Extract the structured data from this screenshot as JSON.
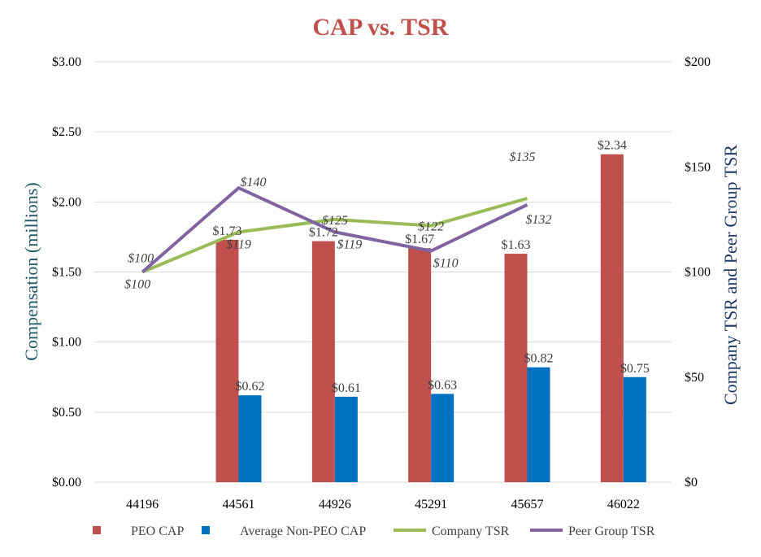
{
  "chart_data": {
    "type": "bar",
    "title": "CAP vs. TSR",
    "title_color": "#c0504d",
    "categories": [
      "44196",
      "44561",
      "44926",
      "45291",
      "45657",
      "46022"
    ],
    "ylabel": "Compensation (millions)",
    "ylabel_color": "#215968",
    "y2label": "Company TSR and Peer Group TSR",
    "y2label_color": "#1f3864",
    "ylim": [
      0,
      3
    ],
    "yticks": [
      {
        "value": 0,
        "label": "$0.00"
      },
      {
        "value": 0.5,
        "label": "$0.50"
      },
      {
        "value": 1,
        "label": "$1.00"
      },
      {
        "value": 1.5,
        "label": "$1.50"
      },
      {
        "value": 2,
        "label": "$2.00"
      },
      {
        "value": 2.5,
        "label": "$2.50"
      },
      {
        "value": 3,
        "label": "$3.00"
      }
    ],
    "y2lim": [
      0,
      200
    ],
    "y2ticks": [
      {
        "value": 0,
        "label": "$0"
      },
      {
        "value": 50,
        "label": "$50"
      },
      {
        "value": 100,
        "label": "$100"
      },
      {
        "value": 150,
        "label": "$150"
      },
      {
        "value": 200,
        "label": "$200"
      }
    ],
    "grid": true,
    "bar_series": [
      {
        "name": "PEO CAP",
        "color": "#c0504d",
        "values": [
          null,
          1.73,
          1.72,
          1.67,
          1.63,
          2.34
        ],
        "labels": [
          null,
          "$1.73",
          "$1.72",
          "$1.67",
          "$1.63",
          "$2.34"
        ]
      },
      {
        "name": "Average Non-PEO CAP",
        "color": "#0070c0",
        "values": [
          null,
          0.62,
          0.61,
          0.63,
          0.82,
          0.75
        ],
        "labels": [
          null,
          "$0.62",
          "$0.61",
          "$0.63",
          "$0.82",
          "$0.75"
        ]
      }
    ],
    "line_series": [
      {
        "name": "Company TSR",
        "color": "#9bbb59",
        "axis": "right",
        "values": [
          100,
          119,
          125,
          122,
          135,
          null
        ],
        "labels": [
          "$100",
          "$119",
          "$125",
          "$122",
          "$135",
          null
        ]
      },
      {
        "name": "Peer Group TSR",
        "color": "#8064a2",
        "axis": "right",
        "values": [
          100,
          140,
          119,
          110,
          132,
          null
        ],
        "labels": [
          "$100",
          "$140",
          "$119",
          "$110",
          "$132",
          null
        ]
      }
    ],
    "legend_position": "bottom"
  }
}
